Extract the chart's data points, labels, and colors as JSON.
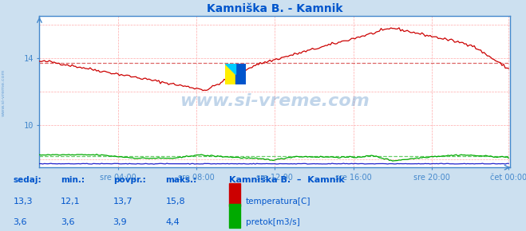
{
  "title": "Kamniška B. - Kamnik",
  "fig_bg_color": "#cce0f0",
  "plot_bg_color": "#ffffff",
  "grid_color_h": "#ffaaaa",
  "grid_color_v": "#ffaaaa",
  "title_color": "#0055cc",
  "axis_color": "#4488cc",
  "tick_color": "#4488cc",
  "spine_color": "#4488cc",
  "xlim": [
    0,
    288
  ],
  "ylim": [
    7.5,
    16.5
  ],
  "ytick_positions": [
    10,
    14
  ],
  "ytick_labels": [
    "10",
    "14"
  ],
  "xtick_positions": [
    48,
    96,
    144,
    192,
    240,
    287
  ],
  "xtick_labels": [
    "sre 04:00",
    "sre 08:00",
    "sre 12:00",
    "sre 16:00",
    "sre 20:00",
    "čet 00:00"
  ],
  "temp_color": "#cc0000",
  "flow_color": "#00aa00",
  "height_color": "#2222cc",
  "avg_temp_color": "#dd6666",
  "avg_flow_color": "#66cc66",
  "watermark": "www.si-vreme.com",
  "watermark_color": "#3377bb",
  "watermark_alpha": 0.3,
  "sidebar_text": "www.si-vreme.com",
  "sidebar_color": "#4488cc",
  "legend_title": "Kamniška B.  –  Kamnik",
  "legend_title_color": "#0055cc",
  "legend_color": "#0055cc",
  "stats_labels": [
    "sedaj:",
    "min.:",
    "povpr.:",
    "maks.:"
  ],
  "stats_temp": [
    "13,3",
    "12,1",
    "13,7",
    "15,8"
  ],
  "stats_flow": [
    "3,6",
    "3,6",
    "3,9",
    "4,4"
  ],
  "legend_items": [
    {
      "label": "temperatura[C]",
      "color": "#cc0000"
    },
    {
      "label": "pretok[m3/s]",
      "color": "#00aa00"
    }
  ],
  "temp_avg": 13.7,
  "flow_avg_y": 8.18,
  "flow_line_y": 8.05,
  "height_line_y": 7.72
}
